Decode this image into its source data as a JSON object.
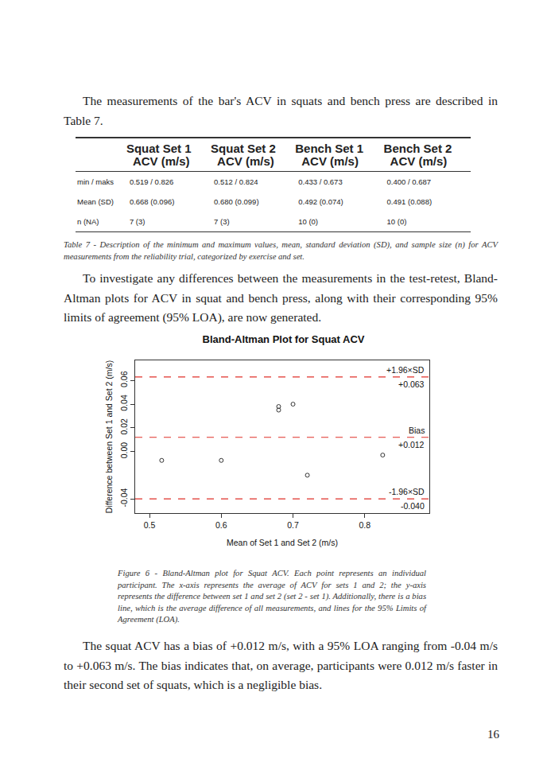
{
  "paragraphs": [
    "The measurements of the bar's ACV in squats and bench press are described in Table 7.",
    "To investigate any differences between the measurements in the test-retest, Bland-Altman plots for ACV in squat and bench press, along with their corresponding 95% limits of agreement (95% LOA), are now generated.",
    "The squat ACV has a bias of +0.012 m/s, with a 95% LOA ranging from -0.04 m/s to +0.063 m/s. The bias indicates that, on average, participants were 0.012 m/s faster in their second set of squats, which is a negligible bias."
  ],
  "table": {
    "header": [
      [
        "Squat Set 1",
        "ACV (m/s)"
      ],
      [
        "Squat Set 2",
        "ACV (m/s)"
      ],
      [
        "Bench Set 1",
        "ACV (m/s)"
      ],
      [
        "Bench Set 2",
        "ACV (m/s)"
      ]
    ],
    "rows": [
      {
        "label": "min / maks",
        "cells": [
          "0.519 / 0.826",
          "0.512 / 0.824",
          "0.433 / 0.673",
          "0.400 / 0.687"
        ]
      },
      {
        "label": "Mean (SD)",
        "cells": [
          "0.668 (0.096)",
          "0.680 (0.099)",
          "0.492 (0.074)",
          "0.491 (0.088)"
        ]
      },
      {
        "label": "n (NA)",
        "cells": [
          "7 (3)",
          "7 (3)",
          "10 (0)",
          "10 (0)"
        ]
      }
    ],
    "caption": "Table 7 - Description of the minimum and maximum values, mean, standard deviation (SD), and sample size (n) for ACV measurements from the reliability trial, categorized by exercise and set."
  },
  "chart_data": {
    "type": "scatter",
    "title": "Bland-Altman Plot for Squat ACV",
    "x_label": "Mean of Set 1 and Set 2 (m/s)",
    "y_label": "Difference between Set 1 and Set 2 (m/s)",
    "x": [
      0.517,
      0.6,
      0.68,
      0.68,
      0.7,
      0.72,
      0.825
    ],
    "values": [
      -0.0075,
      -0.0075,
      0.035,
      0.038,
      0.04,
      -0.02,
      -0.003
    ],
    "color": "#333333",
    "marker": "open circle",
    "xlim": [
      0.48,
      0.89
    ],
    "xticks": [
      0.5,
      0.6,
      0.7,
      0.8
    ],
    "ylim": [
      -0.052,
      0.077
    ],
    "yticks": [
      {
        "value": -0.04,
        "label": "-0.04"
      },
      {
        "value": 0,
        "label": "0.00"
      },
      {
        "value": 0.02,
        "label": "0.02"
      },
      {
        "value": 0.04,
        "label": "0.04"
      },
      {
        "value": 0.06,
        "label": "0.06"
      }
    ],
    "grid": false,
    "reference_lines": [
      {
        "name": "+1.96×SD",
        "value": 0.063,
        "label": "+0.063",
        "color": "#e0302a",
        "line_style": "dashed"
      },
      {
        "name": "Bias",
        "value": 0.012,
        "label": "+0.012",
        "color": "#e0302a",
        "line_style": "dashed"
      },
      {
        "name": "-1.96×SD",
        "value": -0.04,
        "label": "-0.040",
        "color": "#e0302a",
        "line_style": "dashed"
      }
    ],
    "caption": "Figure 6 - Bland-Altman plot for Squat ACV. Each point represents an individual participant. The x-axis represents the average of ACV for sets 1 and 2; the y-axis represents the difference between set 1 and set 2 (set 2 - set 1). Additionally, there is a bias line, which is the average difference of all measurements, and lines for the 95% Limits of Agreement (LOA)."
  },
  "page_number": "16"
}
